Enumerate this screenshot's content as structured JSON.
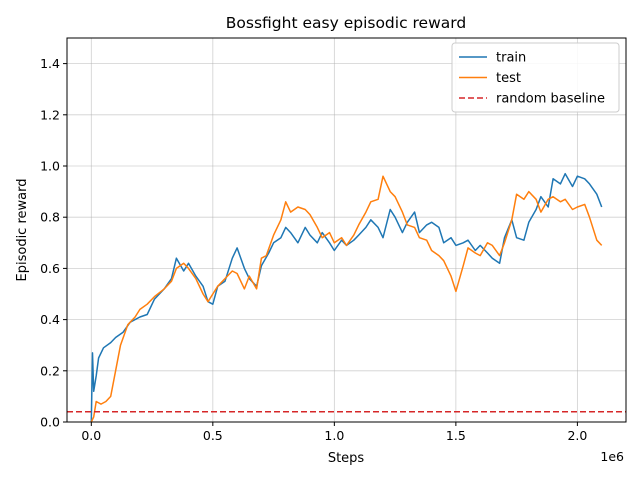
{
  "chart_data": {
    "type": "line",
    "title": "Bossfight easy episodic reward",
    "xlabel": "Steps",
    "ylabel": "Episodic reward",
    "x_multiplier_label": "1e6",
    "xlim": [
      -0.1,
      2.2
    ],
    "ylim": [
      0.0,
      1.5
    ],
    "xticks": [
      0.0,
      0.5,
      1.0,
      1.5,
      2.0
    ],
    "xtick_labels": [
      "0.0",
      "0.5",
      "1.0",
      "1.5",
      "2.0"
    ],
    "yticks": [
      0.0,
      0.2,
      0.4,
      0.6,
      0.8,
      1.0,
      1.2,
      1.4
    ],
    "ytick_labels": [
      "0.0",
      "0.2",
      "0.4",
      "0.6",
      "0.8",
      "1.0",
      "1.2",
      "1.4"
    ],
    "grid": true,
    "legend_position": "top-right",
    "series": [
      {
        "name": "train",
        "color": "#1f77b4",
        "style": "solid",
        "x": [
          0.0,
          0.005,
          0.01,
          0.02,
          0.03,
          0.05,
          0.08,
          0.1,
          0.13,
          0.16,
          0.2,
          0.23,
          0.26,
          0.3,
          0.33,
          0.35,
          0.38,
          0.4,
          0.43,
          0.46,
          0.48,
          0.5,
          0.52,
          0.55,
          0.58,
          0.6,
          0.63,
          0.65,
          0.68,
          0.7,
          0.73,
          0.75,
          0.78,
          0.8,
          0.82,
          0.85,
          0.88,
          0.9,
          0.93,
          0.95,
          0.98,
          1.0,
          1.03,
          1.05,
          1.08,
          1.1,
          1.13,
          1.15,
          1.18,
          1.2,
          1.23,
          1.25,
          1.28,
          1.3,
          1.33,
          1.35,
          1.38,
          1.4,
          1.43,
          1.45,
          1.48,
          1.5,
          1.53,
          1.55,
          1.58,
          1.6,
          1.63,
          1.65,
          1.68,
          1.7,
          1.73,
          1.75,
          1.78,
          1.8,
          1.83,
          1.85,
          1.88,
          1.9,
          1.93,
          1.95,
          1.98,
          2.0,
          2.03,
          2.05,
          2.08,
          2.1
        ],
        "y": [
          0.0,
          0.27,
          0.12,
          0.18,
          0.25,
          0.29,
          0.31,
          0.33,
          0.35,
          0.39,
          0.41,
          0.42,
          0.48,
          0.52,
          0.56,
          0.64,
          0.59,
          0.62,
          0.57,
          0.53,
          0.47,
          0.46,
          0.53,
          0.55,
          0.64,
          0.68,
          0.6,
          0.56,
          0.53,
          0.61,
          0.66,
          0.7,
          0.72,
          0.76,
          0.74,
          0.7,
          0.76,
          0.73,
          0.7,
          0.74,
          0.7,
          0.67,
          0.71,
          0.69,
          0.71,
          0.73,
          0.76,
          0.79,
          0.76,
          0.72,
          0.83,
          0.8,
          0.74,
          0.78,
          0.82,
          0.74,
          0.77,
          0.78,
          0.76,
          0.7,
          0.72,
          0.69,
          0.7,
          0.71,
          0.67,
          0.69,
          0.66,
          0.64,
          0.62,
          0.72,
          0.79,
          0.72,
          0.71,
          0.78,
          0.83,
          0.88,
          0.84,
          0.95,
          0.93,
          0.97,
          0.92,
          0.96,
          0.95,
          0.93,
          0.89,
          0.84
        ]
      },
      {
        "name": "test",
        "color": "#ff7f0e",
        "style": "solid",
        "x": [
          0.0,
          0.01,
          0.02,
          0.04,
          0.06,
          0.08,
          0.1,
          0.12,
          0.15,
          0.18,
          0.2,
          0.23,
          0.26,
          0.3,
          0.33,
          0.35,
          0.38,
          0.4,
          0.43,
          0.46,
          0.48,
          0.5,
          0.52,
          0.55,
          0.58,
          0.6,
          0.63,
          0.65,
          0.68,
          0.7,
          0.72,
          0.75,
          0.78,
          0.8,
          0.82,
          0.85,
          0.88,
          0.9,
          0.93,
          0.95,
          0.98,
          1.0,
          1.03,
          1.05,
          1.08,
          1.1,
          1.13,
          1.15,
          1.18,
          1.2,
          1.23,
          1.25,
          1.28,
          1.3,
          1.33,
          1.35,
          1.38,
          1.4,
          1.43,
          1.45,
          1.48,
          1.5,
          1.53,
          1.55,
          1.58,
          1.6,
          1.63,
          1.65,
          1.68,
          1.7,
          1.73,
          1.75,
          1.78,
          1.8,
          1.83,
          1.85,
          1.88,
          1.9,
          1.93,
          1.95,
          1.98,
          2.0,
          2.03,
          2.05,
          2.08,
          2.1
        ],
        "y": [
          0.0,
          0.02,
          0.08,
          0.07,
          0.08,
          0.1,
          0.2,
          0.3,
          0.38,
          0.41,
          0.44,
          0.46,
          0.49,
          0.52,
          0.55,
          0.6,
          0.62,
          0.6,
          0.56,
          0.5,
          0.47,
          0.5,
          0.53,
          0.56,
          0.59,
          0.58,
          0.52,
          0.57,
          0.52,
          0.64,
          0.65,
          0.73,
          0.79,
          0.86,
          0.82,
          0.84,
          0.83,
          0.81,
          0.76,
          0.72,
          0.74,
          0.7,
          0.72,
          0.69,
          0.73,
          0.77,
          0.82,
          0.86,
          0.87,
          0.96,
          0.9,
          0.88,
          0.82,
          0.77,
          0.76,
          0.72,
          0.71,
          0.67,
          0.65,
          0.63,
          0.57,
          0.51,
          0.61,
          0.68,
          0.66,
          0.65,
          0.7,
          0.69,
          0.65,
          0.7,
          0.79,
          0.89,
          0.87,
          0.9,
          0.87,
          0.82,
          0.87,
          0.88,
          0.86,
          0.87,
          0.83,
          0.84,
          0.85,
          0.8,
          0.71,
          0.69
        ]
      },
      {
        "name": "random baseline",
        "color": "#d62728",
        "style": "dashed",
        "y_constant": 0.04
      }
    ]
  }
}
